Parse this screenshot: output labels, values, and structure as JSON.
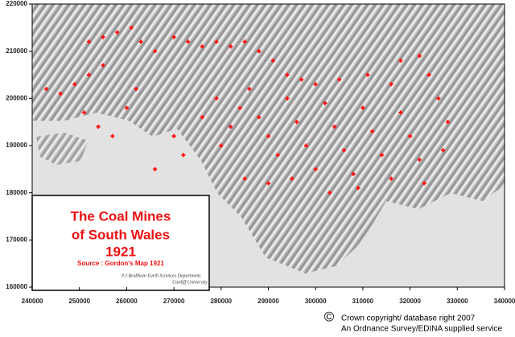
{
  "chart_data": {
    "type": "scatter",
    "x": [
      252000,
      255000,
      258000,
      261000,
      263000,
      266000,
      270000,
      273000,
      276000,
      279000,
      282000,
      285000,
      288000,
      291000,
      294000,
      297000,
      243000,
      246000,
      249000,
      252000,
      255000,
      251000,
      254000,
      257000,
      260000,
      262000,
      280000,
      282000,
      284000,
      286000,
      288000,
      290000,
      292000,
      294000,
      296000,
      298000,
      300000,
      302000,
      304000,
      306000,
      308000,
      310000,
      312000,
      314000,
      316000,
      318000,
      320000,
      322000,
      324000,
      326000,
      328000,
      300000,
      305000,
      311000,
      318000,
      322000,
      285000,
      290000,
      295000,
      279000,
      276000,
      270000,
      272000,
      266000,
      316000,
      323000,
      327000,
      303000,
      309000
    ],
    "values": [
      212000,
      213000,
      214000,
      215000,
      212000,
      210000,
      213000,
      212000,
      211000,
      212000,
      211000,
      212000,
      210000,
      208000,
      205000,
      204000,
      202000,
      201000,
      203000,
      205000,
      207000,
      197000,
      194000,
      192000,
      198000,
      202000,
      190000,
      194000,
      198000,
      202000,
      196000,
      192000,
      188000,
      200000,
      195000,
      190000,
      185000,
      199000,
      194000,
      189000,
      184000,
      198000,
      193000,
      188000,
      203000,
      197000,
      192000,
      187000,
      205000,
      200000,
      195000,
      203000,
      204000,
      205000,
      208000,
      209000,
      183000,
      182000,
      183000,
      200000,
      196000,
      192000,
      188000,
      185000,
      183000,
      182000,
      189000,
      180000,
      181000
    ],
    "color": "#ff1010",
    "xlim": [
      240000,
      340000
    ],
    "ylim": [
      160000,
      220000
    ],
    "xticks": [
      240000,
      250000,
      260000,
      270000,
      280000,
      290000,
      300000,
      310000,
      320000,
      330000,
      340000
    ],
    "yticks": [
      160000,
      170000,
      180000,
      190000,
      200000,
      210000,
      220000
    ]
  },
  "legend_box": {
    "title_lines": [
      "The Coal Mines",
      "of South Wales",
      "1921"
    ],
    "source": "Source : Gordon's Map 1921",
    "author": "P.J.Brabham   Earth Sciences Department",
    "institution": "Cardiff University"
  },
  "copyright": {
    "symbol": "©",
    "lines": [
      "Crown copyright/ database right 2007",
      "An Ordnance Survey/EDINA supplied service"
    ]
  }
}
